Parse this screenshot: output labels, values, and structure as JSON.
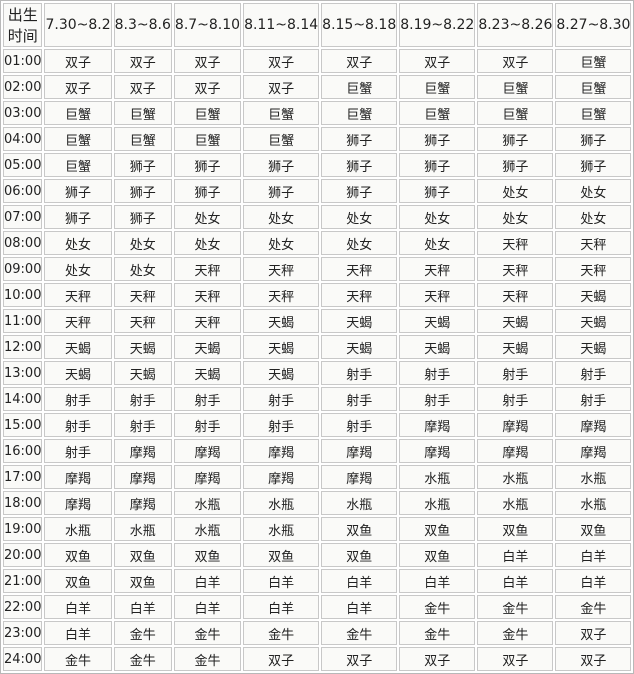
{
  "table": {
    "headers": [
      "出生时间",
      "7.30~8.2",
      "8.3~8.6",
      "8.7~8.10",
      "8.11~8.14",
      "8.15~8.18",
      "8.19~8.22",
      "8.23~8.26",
      "8.27~8.30"
    ],
    "rows": [
      [
        "01:00",
        "双子",
        "双子",
        "双子",
        "双子",
        "双子",
        "双子",
        "双子",
        "巨蟹"
      ],
      [
        "02:00",
        "双子",
        "双子",
        "双子",
        "双子",
        "巨蟹",
        "巨蟹",
        "巨蟹",
        "巨蟹"
      ],
      [
        "03:00",
        "巨蟹",
        "巨蟹",
        "巨蟹",
        "巨蟹",
        "巨蟹",
        "巨蟹",
        "巨蟹",
        "巨蟹"
      ],
      [
        "04:00",
        "巨蟹",
        "巨蟹",
        "巨蟹",
        "巨蟹",
        "狮子",
        "狮子",
        "狮子",
        "狮子"
      ],
      [
        "05:00",
        "巨蟹",
        "狮子",
        "狮子",
        "狮子",
        "狮子",
        "狮子",
        "狮子",
        "狮子"
      ],
      [
        "06:00",
        "狮子",
        "狮子",
        "狮子",
        "狮子",
        "狮子",
        "狮子",
        "处女",
        "处女"
      ],
      [
        "07:00",
        "狮子",
        "狮子",
        "处女",
        "处女",
        "处女",
        "处女",
        "处女",
        "处女"
      ],
      [
        "08:00",
        "处女",
        "处女",
        "处女",
        "处女",
        "处女",
        "处女",
        "天秤",
        "天秤"
      ],
      [
        "09:00",
        "处女",
        "处女",
        "天秤",
        "天秤",
        "天秤",
        "天秤",
        "天秤",
        "天秤"
      ],
      [
        "10:00",
        "天秤",
        "天秤",
        "天秤",
        "天秤",
        "天秤",
        "天秤",
        "天秤",
        "天蝎"
      ],
      [
        "11:00",
        "天秤",
        "天秤",
        "天秤",
        "天蝎",
        "天蝎",
        "天蝎",
        "天蝎",
        "天蝎"
      ],
      [
        "12:00",
        "天蝎",
        "天蝎",
        "天蝎",
        "天蝎",
        "天蝎",
        "天蝎",
        "天蝎",
        "天蝎"
      ],
      [
        "13:00",
        "天蝎",
        "天蝎",
        "天蝎",
        "天蝎",
        "射手",
        "射手",
        "射手",
        "射手"
      ],
      [
        "14:00",
        "射手",
        "射手",
        "射手",
        "射手",
        "射手",
        "射手",
        "射手",
        "射手"
      ],
      [
        "15:00",
        "射手",
        "射手",
        "射手",
        "射手",
        "射手",
        "摩羯",
        "摩羯",
        "摩羯"
      ],
      [
        "16:00",
        "射手",
        "摩羯",
        "摩羯",
        "摩羯",
        "摩羯",
        "摩羯",
        "摩羯",
        "摩羯"
      ],
      [
        "17:00",
        "摩羯",
        "摩羯",
        "摩羯",
        "摩羯",
        "摩羯",
        "水瓶",
        "水瓶",
        "水瓶"
      ],
      [
        "18:00",
        "摩羯",
        "摩羯",
        "水瓶",
        "水瓶",
        "水瓶",
        "水瓶",
        "水瓶",
        "水瓶"
      ],
      [
        "19:00",
        "水瓶",
        "水瓶",
        "水瓶",
        "水瓶",
        "双鱼",
        "双鱼",
        "双鱼",
        "双鱼"
      ],
      [
        "20:00",
        "双鱼",
        "双鱼",
        "双鱼",
        "双鱼",
        "双鱼",
        "双鱼",
        "白羊",
        "白羊"
      ],
      [
        "21:00",
        "双鱼",
        "双鱼",
        "白羊",
        "白羊",
        "白羊",
        "白羊",
        "白羊",
        "白羊"
      ],
      [
        "22:00",
        "白羊",
        "白羊",
        "白羊",
        "白羊",
        "白羊",
        "金牛",
        "金牛",
        "金牛"
      ],
      [
        "23:00",
        "白羊",
        "金牛",
        "金牛",
        "金牛",
        "金牛",
        "金牛",
        "金牛",
        "双子"
      ],
      [
        "24:00",
        "金牛",
        "金牛",
        "金牛",
        "双子",
        "双子",
        "双子",
        "双子",
        "双子"
      ]
    ]
  }
}
